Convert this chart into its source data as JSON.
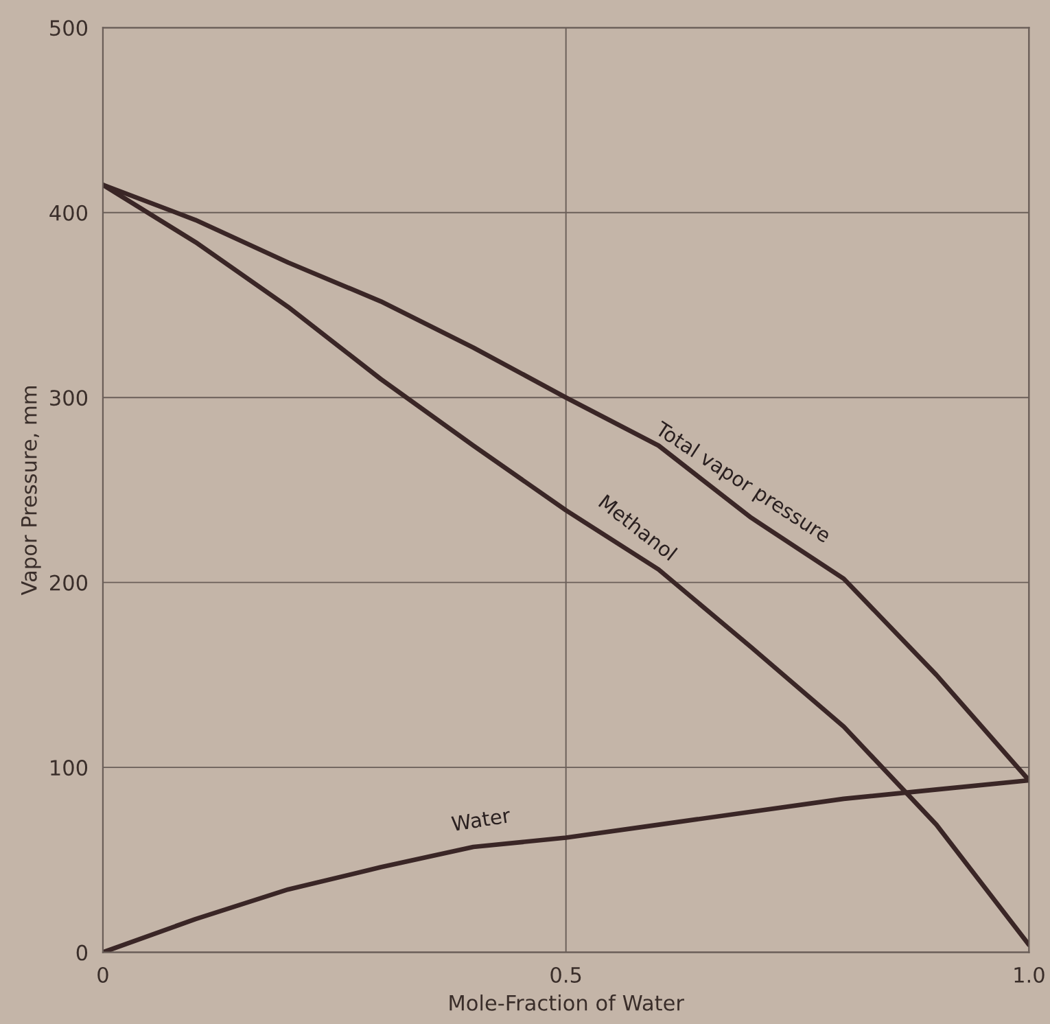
{
  "chart_data": {
    "type": "line",
    "xlabel": "Mole-Fraction of Water",
    "ylabel": "Vapor Pressure, mm",
    "x": [
      0,
      0.1,
      0.2,
      0.3,
      0.4,
      0.5,
      0.6,
      0.7,
      0.8,
      0.9,
      1.0
    ],
    "series": [
      {
        "name": "Total vapor pressure",
        "color": "#3a2626",
        "values": [
          415,
          396,
          373,
          352,
          327,
          300,
          274,
          235,
          202,
          150,
          93
        ]
      },
      {
        "name": "Methanol",
        "color": "#3a2626",
        "values": [
          415,
          384,
          349,
          310,
          274,
          239,
          207,
          165,
          122,
          69,
          4
        ]
      },
      {
        "name": "Water",
        "color": "#3a2626",
        "values": [
          0,
          18,
          34,
          46,
          57,
          62,
          69,
          76,
          83,
          88,
          93
        ]
      }
    ],
    "xlim": [
      0,
      1.0
    ],
    "ylim": [
      0,
      500
    ],
    "xticks": [
      0,
      {
        "value": 0.5,
        "label": "0.5"
      },
      {
        "value": 1.0,
        "label": "1.0"
      }
    ],
    "yticks": [
      0,
      100,
      200,
      300,
      400,
      500
    ],
    "grid": true,
    "marker": "none",
    "line_style": "solid"
  }
}
